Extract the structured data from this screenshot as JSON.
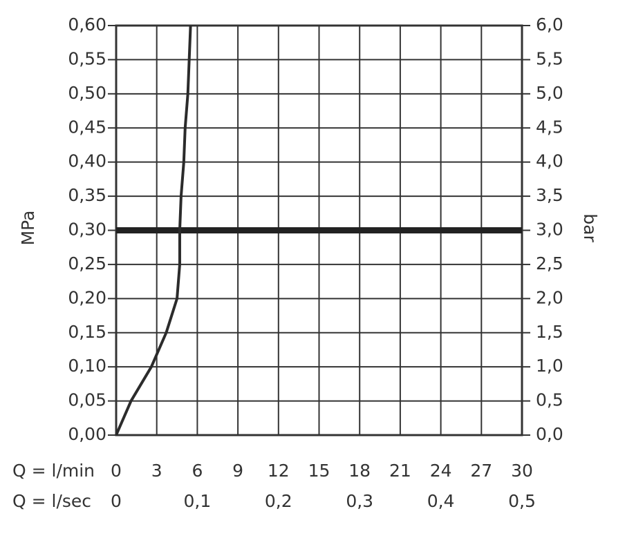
{
  "chart_data": {
    "type": "line",
    "ylabel": "MPa",
    "y2label": "bar",
    "xlabel": "Q = l/min",
    "x2label": "Q = l/sec",
    "xlim": [
      0,
      30
    ],
    "xticks": [
      0,
      3,
      6,
      9,
      12,
      15,
      18,
      21,
      24,
      27,
      30
    ],
    "x2lim": [
      0,
      0.5
    ],
    "x2ticks": [
      0,
      {
        "value": 0.1,
        "label": "0,1"
      },
      {
        "value": 0.2,
        "label": "0,2"
      },
      {
        "value": 0.3,
        "label": "0,3"
      },
      {
        "value": 0.4,
        "label": "0,4"
      },
      {
        "value": 0.5,
        "label": "0,5"
      }
    ],
    "ylim": [
      0,
      0.6
    ],
    "yticks": [
      {
        "value": 0,
        "label": "0,00"
      },
      {
        "value": 0.05,
        "label": "0,05"
      },
      {
        "value": 0.1,
        "label": "0,10"
      },
      {
        "value": 0.15,
        "label": "0,15"
      },
      {
        "value": 0.2,
        "label": "0,20"
      },
      {
        "value": 0.25,
        "label": "0,25"
      },
      {
        "value": 0.3,
        "label": "0,30"
      },
      {
        "value": 0.35,
        "label": "0,35"
      },
      {
        "value": 0.4,
        "label": "0,40"
      },
      {
        "value": 0.45,
        "label": "0,45"
      },
      {
        "value": 0.5,
        "label": "0,50"
      },
      {
        "value": 0.55,
        "label": "0,55"
      },
      {
        "value": 0.6,
        "label": "0,60"
      }
    ],
    "y2lim": [
      0,
      6
    ],
    "y2ticks": [
      {
        "value": 0,
        "label": "0,0"
      },
      {
        "value": 0.5,
        "label": "0,5"
      },
      {
        "value": 1,
        "label": "1,0"
      },
      {
        "value": 1.5,
        "label": "1,5"
      },
      {
        "value": 2,
        "label": "2,0"
      },
      {
        "value": 2.5,
        "label": "2,5"
      },
      {
        "value": 3,
        "label": "3,0"
      },
      {
        "value": 3.5,
        "label": "3,5"
      },
      {
        "value": 4,
        "label": "4,0"
      },
      {
        "value": 4.5,
        "label": "4,5"
      },
      {
        "value": 5,
        "label": "5,0"
      },
      {
        "value": 5.5,
        "label": "5,5"
      },
      {
        "value": 6,
        "label": "6,0"
      }
    ],
    "grid": true,
    "hlines": [
      0.3
    ],
    "series": [
      {
        "color": "#2b2b2b",
        "x": [
          0,
          1.1,
          2.6,
          3.7,
          4.5,
          4.7,
          4.7,
          4.8,
          5.0,
          5.1,
          5.3,
          5.4,
          5.5
        ],
        "values": [
          0,
          0.05,
          0.1,
          0.15,
          0.2,
          0.25,
          0.3,
          0.35,
          0.4,
          0.45,
          0.5,
          0.55,
          0.6
        ]
      }
    ]
  }
}
